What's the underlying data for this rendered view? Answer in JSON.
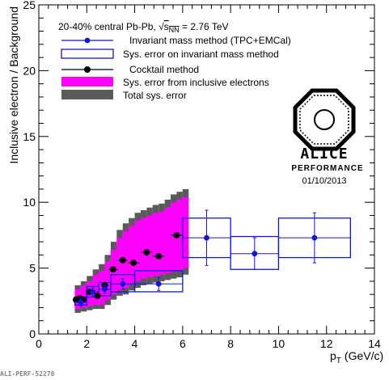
{
  "chart_data": {
    "type": "scatter",
    "xlabel": "p",
    "xlabel_sub": "T",
    "xlabel_unit": "(GeV/c)",
    "ylabel": "Inclusive electron / Background",
    "xlim": [
      0,
      14
    ],
    "ylim": [
      0,
      25
    ],
    "x_ticks": [
      0,
      2,
      4,
      6,
      8,
      10,
      12,
      14
    ],
    "y_ticks": [
      0,
      5,
      10,
      15,
      20,
      25
    ],
    "legend_position": "top-left",
    "legend_header": {
      "prefix": "20-40% central Pb-Pb, ",
      "sqrt_symbol": "√",
      "s_var": "s",
      "s_sub": "NN",
      "suffix": " = 2.76 TeV"
    },
    "legend": [
      {
        "key": "invmass",
        "label": "Invariant mass method (TPC+EMCal)",
        "marker": "point-line",
        "color": "#1414dc"
      },
      {
        "key": "invmass_sys",
        "label": "Sys. error on invariant mass method",
        "marker": "open-box",
        "color": "#1414dc"
      },
      {
        "key": "cocktail",
        "label": "Cocktail method",
        "marker": "point-line",
        "color": "#000000"
      },
      {
        "key": "inclusive_sys",
        "label": "Sys. error from inclusive electrons",
        "marker": "filled-box",
        "color": "#ff00ff"
      },
      {
        "key": "total_sys",
        "label": "Total sys. error",
        "marker": "filled-box",
        "color": "#5a5a5a"
      }
    ],
    "logo": {
      "name": "ALICE",
      "subtitle": "PERFORMANCE",
      "date": "01/10/2013"
    },
    "footer_tag": "ALI-PERF-52278",
    "colors": {
      "invmass": "#1414dc",
      "cocktail": "#000000",
      "inclusive_sys": "#ff00ff",
      "total_sys": "#5a5a5a"
    },
    "series": [
      {
        "name": "Invariant mass method (TPC+EMCal)",
        "x": [
          1.75,
          2.25,
          2.75,
          3.5,
          5.0,
          7.0,
          9.0,
          11.5
        ],
        "xerr": [
          0.25,
          0.25,
          0.25,
          0.5,
          1.0,
          1.0,
          1.0,
          1.5
        ],
        "y": [
          2.4,
          3.2,
          3.4,
          3.8,
          3.8,
          7.3,
          6.1,
          7.3
        ],
        "yerr": [
          0.3,
          0.3,
          0.3,
          0.4,
          0.5,
          2.1,
          1.2,
          1.9
        ],
        "sys_low": [
          2.2,
          2.8,
          2.9,
          3.2,
          3.2,
          5.8,
          4.9,
          5.8
        ],
        "sys_high": [
          2.8,
          3.6,
          3.9,
          4.5,
          4.8,
          8.8,
          7.4,
          8.8
        ]
      },
      {
        "name": "Cocktail method",
        "x": [
          1.55,
          1.7,
          1.85,
          2.1,
          2.45,
          2.75,
          3.1,
          3.5,
          3.95,
          4.5,
          5.0,
          5.75
        ],
        "xerr": [
          0.08,
          0.08,
          0.08,
          0.12,
          0.12,
          0.15,
          0.2,
          0.2,
          0.25,
          0.25,
          0.25,
          0.25
        ],
        "y": [
          2.6,
          2.7,
          2.6,
          3.2,
          2.9,
          3.7,
          4.9,
          5.6,
          5.4,
          6.2,
          5.9,
          7.5
        ],
        "band_x": [
          1.5,
          1.75,
          2.0,
          2.25,
          2.5,
          2.75,
          3.0,
          3.25,
          3.5,
          3.75,
          4.0,
          4.25,
          4.5,
          4.75,
          5.0,
          5.25,
          5.5,
          5.75,
          6.0
        ],
        "inclusive_low": [
          1.9,
          2.0,
          2.1,
          2.2,
          2.2,
          2.6,
          3.0,
          3.3,
          3.5,
          3.8,
          4.0,
          4.2,
          4.3,
          4.4,
          4.5,
          4.6,
          4.7,
          4.8,
          5.0
        ],
        "inclusive_high": [
          3.4,
          3.7,
          4.0,
          4.5,
          4.8,
          5.5,
          6.4,
          7.3,
          7.8,
          8.2,
          8.6,
          8.8,
          9.0,
          9.2,
          9.3,
          9.6,
          10.0,
          10.2,
          10.4
        ],
        "total_low": [
          1.6,
          1.7,
          1.8,
          1.9,
          1.9,
          2.2,
          2.6,
          2.9,
          3.0,
          3.3,
          3.5,
          3.7,
          3.8,
          3.9,
          4.0,
          4.1,
          4.2,
          4.3,
          4.5
        ],
        "total_high": [
          3.7,
          4.0,
          4.4,
          4.9,
          5.3,
          6.0,
          7.0,
          7.9,
          8.4,
          8.8,
          9.2,
          9.4,
          9.6,
          9.8,
          9.9,
          10.2,
          10.6,
          10.8,
          11.0
        ]
      }
    ]
  }
}
